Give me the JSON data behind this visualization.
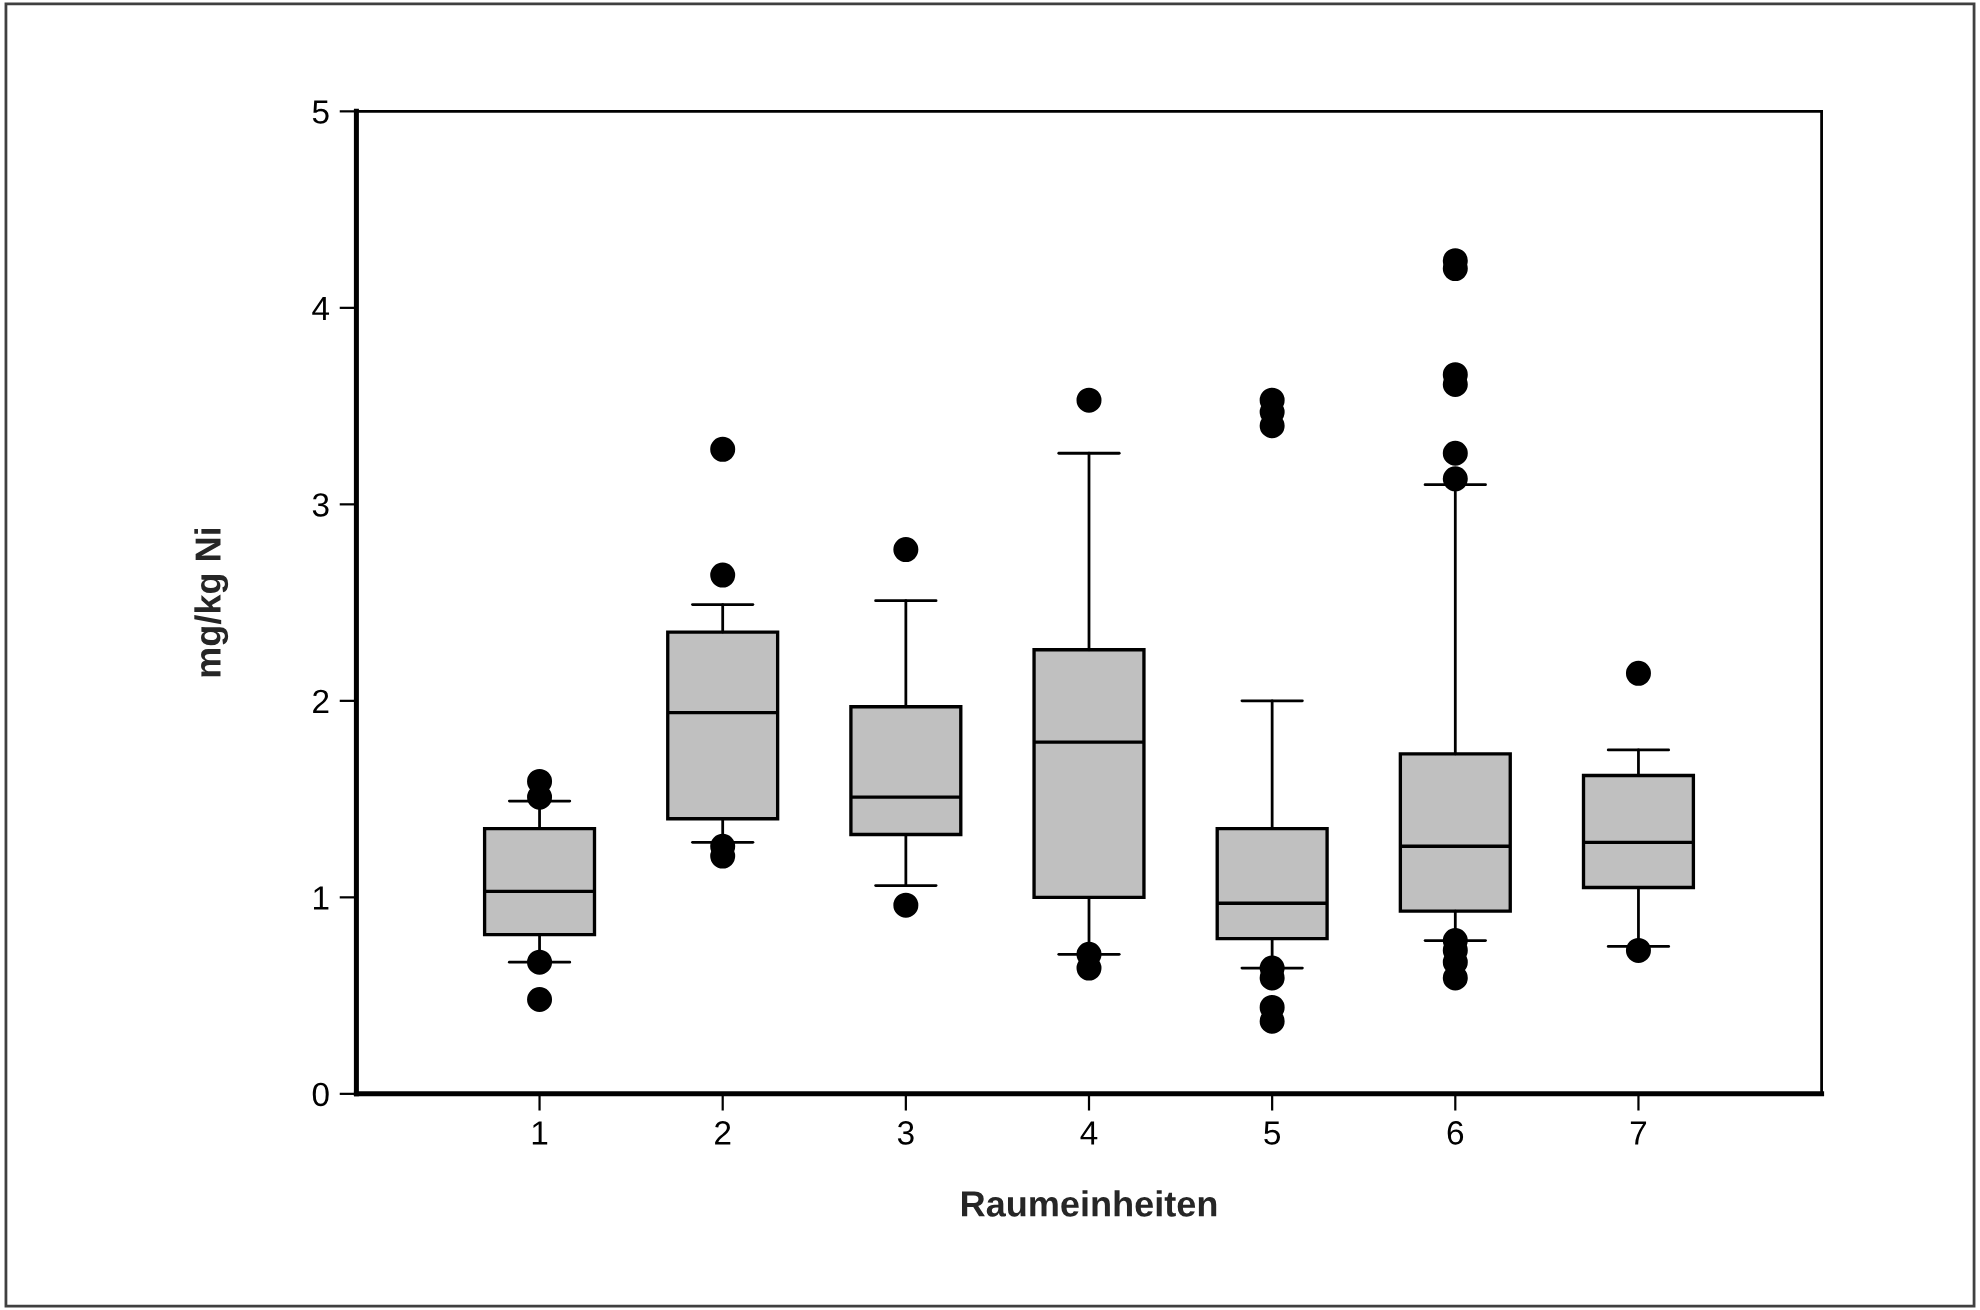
{
  "chart_data": {
    "type": "box",
    "xlabel": "Raumeinheiten",
    "ylabel": "mg/kg Ni",
    "categories": [
      "1",
      "2",
      "3",
      "4",
      "5",
      "6",
      "7"
    ],
    "color": "#c0c0c0",
    "boxes": [
      {
        "low": 0.67,
        "q1": 0.81,
        "median": 1.03,
        "q3": 1.35,
        "high": 1.49,
        "outliers": [
          1.59,
          1.51,
          0.67,
          0.48
        ]
      },
      {
        "low": 1.28,
        "q1": 1.4,
        "median": 1.94,
        "q3": 2.35,
        "high": 2.49,
        "outliers": [
          3.28,
          2.64,
          1.26,
          1.21
        ]
      },
      {
        "low": 1.06,
        "q1": 1.32,
        "median": 1.51,
        "q3": 1.97,
        "high": 2.51,
        "outliers": [
          2.77,
          0.96
        ]
      },
      {
        "low": 0.71,
        "q1": 1.0,
        "median": 1.79,
        "q3": 2.26,
        "high": 3.26,
        "outliers": [
          3.53,
          0.71,
          0.64
        ]
      },
      {
        "low": 0.64,
        "q1": 0.79,
        "median": 0.97,
        "q3": 1.35,
        "high": 2.0,
        "outliers": [
          3.53,
          3.47,
          3.4,
          0.64,
          0.59,
          0.44,
          0.37
        ]
      },
      {
        "low": 0.78,
        "q1": 0.93,
        "median": 1.26,
        "q3": 1.73,
        "high": 3.1,
        "outliers": [
          4.24,
          4.2,
          3.66,
          3.61,
          3.26,
          3.13,
          0.78,
          0.73,
          0.67,
          0.59
        ]
      },
      {
        "low": 0.75,
        "q1": 1.05,
        "median": 1.28,
        "q3": 1.62,
        "high": 1.75,
        "outliers": [
          2.14,
          0.73
        ]
      }
    ],
    "ylim": [
      0,
      5
    ],
    "yticks": [
      0,
      1,
      2,
      3,
      4,
      5
    ],
    "grid": false
  }
}
